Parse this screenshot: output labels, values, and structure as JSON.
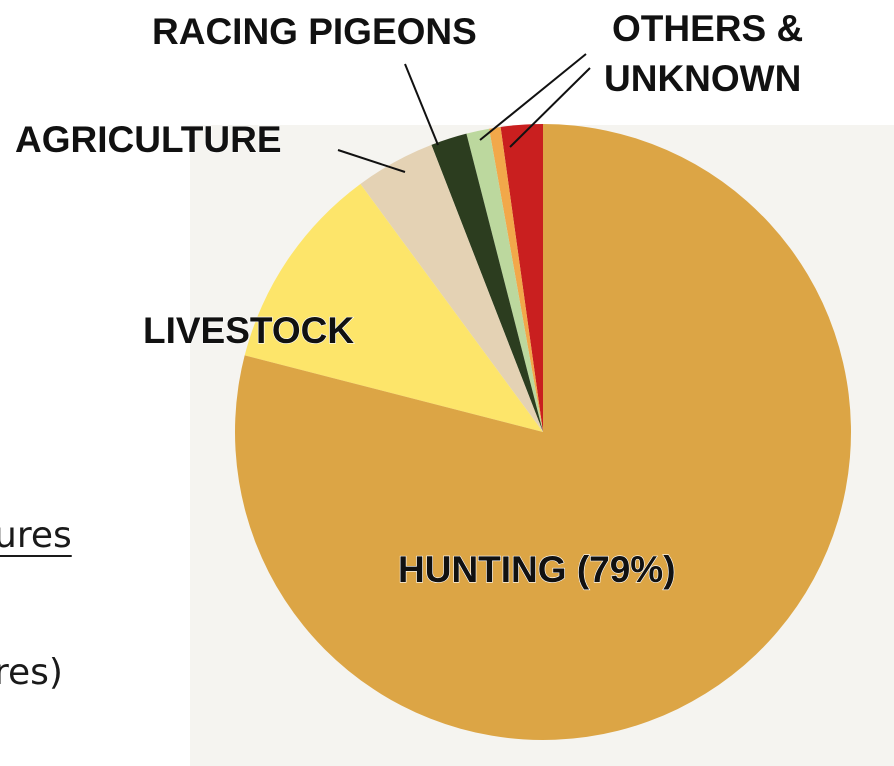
{
  "side_text": {
    "line1": "ures",
    "line2": "res)"
  },
  "chart_data": {
    "type": "pie",
    "categories": [
      "Others & Unknown (red)",
      "Others & Unknown (orange)",
      "Others & Unknown (green)",
      "Racing Pigeons",
      "Agriculture",
      "Livestock",
      "Hunting"
    ],
    "values": [
      2.2,
      0.6,
      1.2,
      1.9,
      4.2,
      10.9,
      79.0
    ],
    "colors": [
      "#c91f1f",
      "#f2a84a",
      "#bcd89e",
      "#2c3d1f",
      "#e4d2b4",
      "#fde56a",
      "#dca545"
    ],
    "labels": {
      "hunting": "HUNTING (79%)",
      "livestock": "LIVESTOCK",
      "agriculture": "AGRICULTURE",
      "racing_pigeons": "RACING PIGEONS",
      "others_line1": "OTHERS &",
      "others_line2": "UNKNOWN"
    }
  }
}
